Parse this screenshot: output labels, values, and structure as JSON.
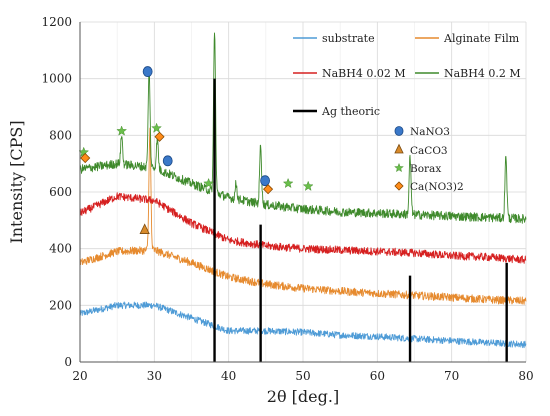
{
  "chart_data": {
    "type": "line",
    "xlabel": "2θ [deg.]",
    "ylabel": "Intensity [CPS]",
    "xlim": [
      20,
      80
    ],
    "ylim": [
      0,
      1200
    ],
    "x_ticks": [
      20,
      30,
      40,
      50,
      60,
      70,
      80
    ],
    "y_ticks": [
      0,
      200,
      400,
      600,
      800,
      1000,
      1200
    ],
    "grid": "vertical and horizontal, light gray",
    "legend": {
      "placement": "top-right, inside plot",
      "entries": [
        {
          "name": "substrate",
          "color": "#4e9bd6"
        },
        {
          "name": "Alginate Film",
          "color": "#e68a2e"
        },
        {
          "name": "NaBH4 0.02 M",
          "color": "#d62020"
        },
        {
          "name": "NaBH4 0.2 M",
          "color": "#3f8a2c"
        },
        {
          "name": "Ag theoric",
          "color": "#000000"
        }
      ]
    },
    "series": [
      {
        "name": "substrate",
        "color": "#4e9bd6",
        "noise": 12,
        "baseline_x": [
          20,
          25,
          30,
          35,
          40,
          45,
          50,
          55,
          60,
          65,
          70,
          75,
          80
        ],
        "baseline_y": [
          170,
          200,
          200,
          155,
          110,
          110,
          105,
          95,
          90,
          82,
          75,
          68,
          62
        ],
        "peaks": []
      },
      {
        "name": "Alginate Film",
        "color": "#e68a2e",
        "noise": 14,
        "baseline_x": [
          20,
          25,
          30,
          35,
          40,
          45,
          50,
          55,
          60,
          65,
          70,
          75,
          80
        ],
        "baseline_y": [
          350,
          390,
          395,
          350,
          300,
          275,
          260,
          250,
          242,
          235,
          228,
          220,
          215
        ],
        "peaks": [
          {
            "x": 29.4,
            "y": 820
          }
        ]
      },
      {
        "name": "NaBH4 0.02 M",
        "color": "#d62020",
        "noise": 14,
        "baseline_x": [
          20,
          25,
          30,
          35,
          40,
          45,
          50,
          55,
          60,
          65,
          70,
          75,
          80
        ],
        "baseline_y": [
          525,
          585,
          570,
          490,
          430,
          410,
          400,
          395,
          390,
          385,
          375,
          370,
          360
        ],
        "peaks": []
      },
      {
        "name": "NaBH4 0.2 M",
        "color": "#3f8a2c",
        "noise": 16,
        "baseline_x": [
          20,
          25,
          30,
          35,
          40,
          45,
          50,
          55,
          60,
          65,
          70,
          75,
          80
        ],
        "baseline_y": [
          680,
          700,
          685,
          630,
          580,
          555,
          540,
          530,
          525,
          520,
          515,
          510,
          505
        ],
        "peaks": [
          {
            "x": 25.6,
            "y": 800
          },
          {
            "x": 29.3,
            "y": 1030
          },
          {
            "x": 30.4,
            "y": 790
          },
          {
            "x": 38.1,
            "y": 1175
          },
          {
            "x": 41.0,
            "y": 630
          },
          {
            "x": 44.3,
            "y": 770
          },
          {
            "x": 64.4,
            "y": 725
          },
          {
            "x": 77.3,
            "y": 730
          }
        ]
      }
    ],
    "reference_lines": {
      "name": "Ag theoric",
      "color": "#000000",
      "lines": [
        {
          "x": 38.1,
          "y": 1000
        },
        {
          "x": 44.3,
          "y": 485
        },
        {
          "x": 64.4,
          "y": 305
        },
        {
          "x": 77.4,
          "y": 350
        }
      ]
    },
    "marker_legend": [
      {
        "label": "NaNO3",
        "shape": "circle",
        "color": "#3a78c9"
      },
      {
        "label": "CaCO3",
        "shape": "triangle",
        "color": "#d88a2a"
      },
      {
        "label": "Borax",
        "shape": "star",
        "color": "#6abf4b"
      },
      {
        "label": "Ca(NO3)2",
        "shape": "diamond",
        "color": "#ff8c1a"
      }
    ],
    "phase_markers": [
      {
        "shape": "circle",
        "color": "#3a78c9",
        "x": 29.1,
        "y": 1025
      },
      {
        "shape": "circle",
        "color": "#3a78c9",
        "x": 31.8,
        "y": 710
      },
      {
        "shape": "circle",
        "color": "#3a78c9",
        "x": 44.9,
        "y": 640
      },
      {
        "shape": "triangle",
        "color": "#d88a2a",
        "x": 28.7,
        "y": 465
      },
      {
        "shape": "star",
        "color": "#6abf4b",
        "x": 20.5,
        "y": 740
      },
      {
        "shape": "star",
        "color": "#6abf4b",
        "x": 25.6,
        "y": 815
      },
      {
        "shape": "star",
        "color": "#6abf4b",
        "x": 30.3,
        "y": 825
      },
      {
        "shape": "star",
        "color": "#6abf4b",
        "x": 37.3,
        "y": 630
      },
      {
        "shape": "star",
        "color": "#6abf4b",
        "x": 48.0,
        "y": 630
      },
      {
        "shape": "star",
        "color": "#6abf4b",
        "x": 50.7,
        "y": 620
      },
      {
        "shape": "diamond",
        "color": "#ff8c1a",
        "x": 20.7,
        "y": 720
      },
      {
        "shape": "diamond",
        "color": "#ff8c1a",
        "x": 30.7,
        "y": 795
      },
      {
        "shape": "diamond",
        "color": "#ff8c1a",
        "x": 45.3,
        "y": 610
      }
    ]
  }
}
